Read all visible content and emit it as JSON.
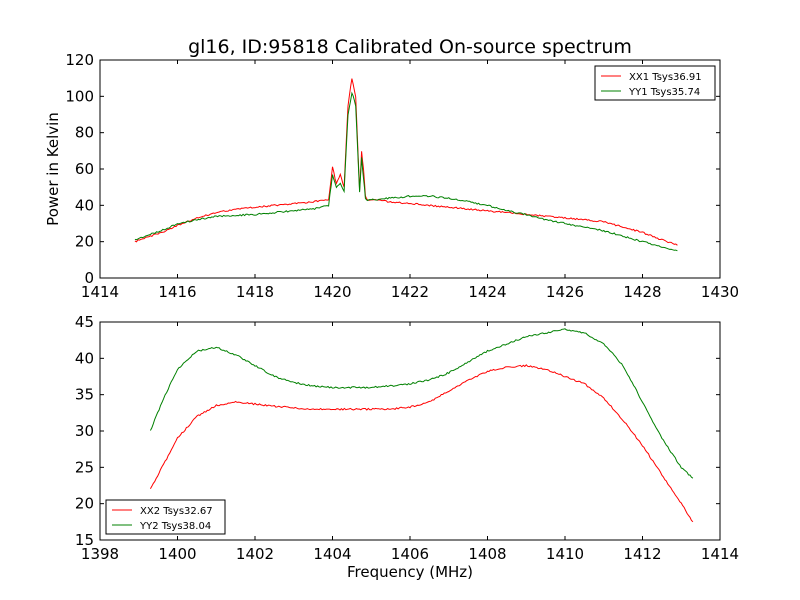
{
  "figure": {
    "title": "gl16, ID:95818 Calibrated On-source spectrum"
  },
  "chart_data": [
    {
      "type": "line",
      "title": "gl16, ID:95818 Calibrated On-source spectrum",
      "xlabel": "",
      "ylabel": "Power in Kelvin",
      "xlim": [
        1414,
        1430
      ],
      "ylim": [
        0,
        120
      ],
      "xticks": [
        "1414",
        "1416",
        "1418",
        "1420",
        "1422",
        "1424",
        "1426",
        "1428",
        "1430"
      ],
      "yticks": [
        "0",
        "20",
        "40",
        "60",
        "80",
        "100",
        "120"
      ],
      "grid": false,
      "legend_position": "top-right",
      "series": [
        {
          "name": "XX1 Tsys36.91",
          "color": "#ff0000",
          "x": [
            1414.9,
            1415.3,
            1415.7,
            1416.0,
            1416.5,
            1417.0,
            1417.5,
            1418.0,
            1418.5,
            1419.0,
            1419.5,
            1419.9,
            1420.0,
            1420.1,
            1420.2,
            1420.3,
            1420.4,
            1420.5,
            1420.6,
            1420.7,
            1420.75,
            1420.8,
            1420.85,
            1420.9,
            1421.0,
            1421.5,
            1422.0,
            1422.5,
            1423.0,
            1423.5,
            1424.0,
            1424.5,
            1425.0,
            1425.5,
            1426.0,
            1426.5,
            1427.0,
            1427.5,
            1428.0,
            1428.5,
            1428.9
          ],
          "y": [
            20,
            23,
            26,
            29,
            33,
            36,
            38,
            39,
            40,
            41,
            42,
            43,
            61,
            52,
            57,
            50,
            95,
            110,
            100,
            48,
            70,
            60,
            45,
            43,
            43,
            42,
            41,
            40,
            39,
            38,
            37,
            36,
            35,
            34,
            33,
            32,
            31,
            28,
            25,
            21,
            18
          ]
        },
        {
          "name": "YY1 Tsys35.74",
          "color": "#008000",
          "x": [
            1414.9,
            1415.3,
            1415.7,
            1416.0,
            1416.5,
            1417.0,
            1417.5,
            1418.0,
            1418.5,
            1419.0,
            1419.5,
            1419.9,
            1420.0,
            1420.1,
            1420.2,
            1420.3,
            1420.4,
            1420.5,
            1420.6,
            1420.7,
            1420.75,
            1420.8,
            1420.85,
            1420.9,
            1421.0,
            1421.5,
            1422.0,
            1422.5,
            1423.0,
            1423.5,
            1424.0,
            1424.5,
            1425.0,
            1425.5,
            1426.0,
            1426.5,
            1427.0,
            1427.5,
            1428.0,
            1428.5,
            1428.9
          ],
          "y": [
            21,
            24,
            27,
            30,
            32,
            34,
            34.5,
            35,
            36,
            37,
            38,
            40,
            57,
            50,
            52,
            48,
            90,
            102,
            95,
            47,
            66,
            55,
            44,
            43,
            43,
            44,
            45,
            45,
            44,
            42,
            40,
            37,
            35,
            32,
            30,
            28,
            26,
            23,
            20,
            17,
            15
          ]
        }
      ]
    },
    {
      "type": "line",
      "title": "",
      "xlabel": "Frequency (MHz)",
      "ylabel": "",
      "xlim": [
        1398,
        1414
      ],
      "ylim": [
        15,
        45
      ],
      "xticks": [
        "1398",
        "1400",
        "1402",
        "1404",
        "1406",
        "1408",
        "1410",
        "1412",
        "1414"
      ],
      "yticks": [
        "15",
        "20",
        "25",
        "30",
        "35",
        "40",
        "45"
      ],
      "grid": false,
      "legend_position": "bottom-left",
      "series": [
        {
          "name": "XX2 Tsys32.67",
          "color": "#ff0000",
          "x": [
            1399.3,
            1399.6,
            1400.0,
            1400.5,
            1401.0,
            1401.5,
            1402.0,
            1402.5,
            1403.0,
            1403.5,
            1404.0,
            1404.5,
            1405.0,
            1405.5,
            1406.0,
            1406.5,
            1407.0,
            1407.5,
            1408.0,
            1408.5,
            1409.0,
            1409.5,
            1410.0,
            1410.5,
            1411.0,
            1411.5,
            1412.0,
            1412.5,
            1413.0,
            1413.3
          ],
          "y": [
            22,
            25,
            29,
            32,
            33.5,
            34,
            33.7,
            33.4,
            33.2,
            33,
            33,
            33,
            33,
            33,
            33.3,
            34,
            35.5,
            37,
            38.2,
            38.8,
            39,
            38.5,
            37.5,
            36.5,
            34.5,
            31.5,
            28,
            24,
            20,
            17.5
          ]
        },
        {
          "name": "YY2 Tsys38.04",
          "color": "#008000",
          "x": [
            1399.3,
            1399.6,
            1400.0,
            1400.5,
            1401.0,
            1401.5,
            1402.0,
            1402.5,
            1403.0,
            1403.5,
            1404.0,
            1404.5,
            1405.0,
            1405.5,
            1406.0,
            1406.5,
            1407.0,
            1407.5,
            1408.0,
            1408.5,
            1409.0,
            1409.5,
            1410.0,
            1410.5,
            1411.0,
            1411.5,
            1412.0,
            1412.5,
            1413.0,
            1413.3
          ],
          "y": [
            30,
            34,
            38.5,
            41,
            41.5,
            40.5,
            39,
            37.5,
            36.7,
            36.2,
            36,
            36,
            36,
            36.2,
            36.5,
            37,
            38,
            39.5,
            41,
            42,
            43,
            43.5,
            44,
            43.5,
            42,
            39,
            34,
            29,
            25,
            23.5
          ]
        }
      ]
    }
  ]
}
